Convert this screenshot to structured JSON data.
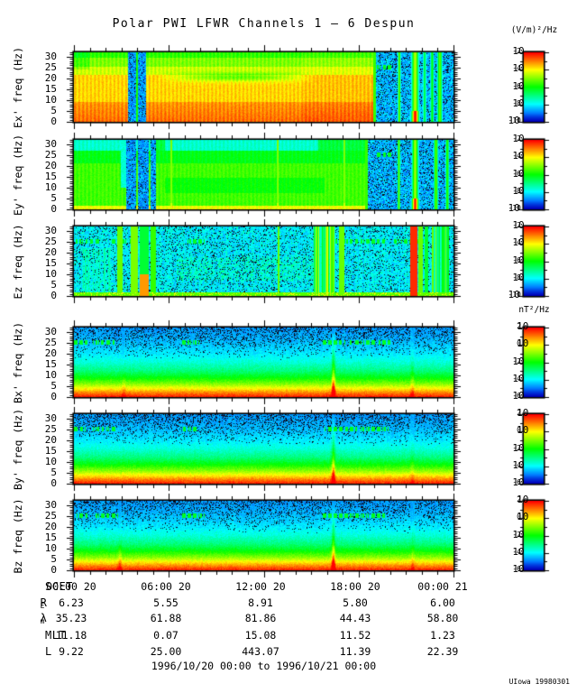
{
  "title": "Polar PWI LFWR Channels 1 — 6 Despun",
  "credit": "UIowa 19980301",
  "footer_range": "1996/10/20 00:00 to 1996/10/21 00:00",
  "freq_ticks": [
    "30",
    "25",
    "20",
    "15",
    "10",
    "5",
    "0"
  ],
  "time_ticks": [
    "00:00 20",
    "06:00 20",
    "12:00 20",
    "18:00 20",
    "00:00 21"
  ],
  "colorbar_groups": {
    "electric": {
      "unit": "(V/m)²/Hz",
      "exponents": [
        "-2",
        "-4",
        "-6",
        "-8",
        "-10"
      ]
    },
    "magnetic": {
      "unit": "nT²/Hz",
      "exponents": [
        "2",
        "0",
        "-2",
        "-4",
        "-6"
      ]
    }
  },
  "bottom_table": {
    "rows": [
      {
        "label": "SCET",
        "sub": "",
        "values": [
          "00:00 20",
          "06:00 20",
          "12:00 20",
          "18:00 20",
          "00:00 21"
        ]
      },
      {
        "label": "R",
        "sub": "E",
        "values": [
          "6.23",
          "5.55",
          "8.91",
          "5.80",
          "6.00"
        ]
      },
      {
        "label": "λ",
        "sub": "m",
        "values": [
          "35.23",
          "61.88",
          "81.86",
          "44.43",
          "58.80"
        ]
      },
      {
        "label": "MLT",
        "sub": "",
        "values": [
          "11.18",
          "0.07",
          "15.08",
          "11.52",
          "1.23"
        ]
      },
      {
        "label": "L",
        "sub": "",
        "values": [
          "9.22",
          "25.00",
          "443.07",
          "11.39",
          "22.39"
        ]
      }
    ]
  },
  "chart_data": {
    "type": "heatmap",
    "title": "Polar PWI LFWR Channels 1 — 6 Despun",
    "x_axis": {
      "label": "SCET",
      "start": "1996/10/20 00:00",
      "end": "1996/10/21 00:00",
      "span_hours": 24,
      "major_tick_hours": 6,
      "minor_tick_hours": 1,
      "tick_labels": [
        "00:00 20",
        "06:00 20",
        "12:00 20",
        "18:00 20",
        "00:00 21"
      ]
    },
    "y_axis": {
      "label": "freq (Hz)",
      "range": [
        0,
        32
      ],
      "major_ticks": [
        0,
        5,
        10,
        15,
        20,
        25,
        30
      ],
      "minor_tick_hz": 1
    },
    "colormap": "rainbow (blue=low ... red=high)",
    "panels": [
      {
        "id": "ex",
        "ylabel": "Ex' freq (Hz)",
        "colorbar_unit": "(V/m)²/Hz",
        "colorbar_ticks": [
          "10^-2",
          "10^-4",
          "10^-6",
          "10^-8",
          "10^-10"
        ],
        "summary": "Intense broadband emission (yellow/orange ~1e-4) below ~22 Hz with green band above 25 Hz until ~19:00; dropout bands ~03:20-04:30; weak noisy blue field after ~19:00 with narrow bursts.",
        "features": {
          "kind": "E1",
          "dark_bands": [
            [
              0.142,
              0.162
            ],
            [
              0.168,
              0.19
            ]
          ],
          "gap_line": [
            0.163,
            0.168
          ],
          "noisy_start": 0.79,
          "arc": {
            "f": 20.5,
            "t0": 0.22,
            "t1": 0.64
          },
          "dash_segments": [
            [
              0.8,
              0.836
            ]
          ],
          "stripes": [
            {
              "t": 0.858,
              "w": 0.004,
              "v": 0.62
            },
            {
              "t": 0.9,
              "w": 0.01,
              "v": 0.68,
              "hot": true
            },
            {
              "t": 0.925,
              "w": 0.005,
              "v": 0.45
            },
            {
              "t": 0.945,
              "w": 0.005,
              "v": 0.5
            },
            {
              "t": 0.965,
              "w": 0.007,
              "v": 0.6
            }
          ]
        }
      },
      {
        "id": "ey",
        "ylabel": "Ey' freq (Hz)",
        "colorbar_unit": "(V/m)²/Hz",
        "colorbar_ticks": [
          "10^-2",
          "10^-4",
          "10^-6",
          "10^-8",
          "10^-10"
        ],
        "summary": "Moderate green emission (~1e-7) with blue above ~27 Hz; same dropout bands; narrow yellow bursts near 06:10, 12:55, 17:05; weak noisy field after ~18:30.",
        "features": {
          "kind": "E2",
          "dark_bands": [
            [
              0.138,
              0.162
            ],
            [
              0.168,
              0.196
            ],
            [
              0.202,
              0.216
            ]
          ],
          "partial_dark": [
            0.122,
            0.138
          ],
          "noisy_start": 0.768,
          "yellow_lines": [
            0.256,
            0.537,
            0.713
          ],
          "dash_segments": [
            [
              0.8,
              0.838
            ]
          ],
          "stripes": [
            {
              "t": 0.857,
              "w": 0.004,
              "v": 0.6
            },
            {
              "t": 0.9,
              "w": 0.009,
              "v": 0.66,
              "hot": true
            },
            {
              "t": 0.955,
              "w": 0.006,
              "v": 0.6
            },
            {
              "t": 0.985,
              "w": 0.005,
              "v": 0.55
            }
          ]
        }
      },
      {
        "id": "ez",
        "ylabel": "Ez freq (Hz)",
        "colorbar_unit": "(V/m)²/Hz",
        "colorbar_ticks": [
          "10^-2",
          "10^-4",
          "10^-6",
          "10^-8",
          "10^-10"
        ],
        "summary": "Weak blue background with interference line near 25 Hz; green burst clusters ~02:45-05:10 and ~15:10-16:30; intense red burst near 21:20; green baseline at lowest frequencies.",
        "features": {
          "kind": "E3",
          "dash_segments": [
            [
              0.003,
              0.07
            ],
            [
              0.095,
              0.17
            ],
            [
              0.295,
              0.345
            ],
            [
              0.655,
              0.82
            ],
            [
              0.845,
              0.935
            ]
          ],
          "faint_cols": [
            0.02,
            0.1
          ],
          "stripes": [
            {
              "t0": 0.113,
              "t1": 0.128,
              "v": 0.6
            },
            {
              "t0": 0.15,
              "t1": 0.168,
              "v": 0.62
            },
            {
              "t0": 0.172,
              "t1": 0.196,
              "v": 0.85,
              "fmax": 10
            },
            {
              "t0": 0.202,
              "t1": 0.215,
              "v": 0.55
            },
            {
              "t0": 0.538,
              "t1": 0.542,
              "v": 0.6
            },
            {
              "t0": 0.632,
              "t1": 0.69,
              "v": 0.62,
              "noisy": true
            },
            {
              "t0": 0.7,
              "t1": 0.712,
              "v": 0.6
            },
            {
              "t0": 0.886,
              "t1": 0.905,
              "v": 0.96
            },
            {
              "t0": 0.908,
              "t1": 0.92,
              "v": 0.6
            },
            {
              "t0": 0.925,
              "t1": 0.935,
              "v": 0.45
            },
            {
              "t0": 0.945,
              "t1": 0.99,
              "v": 0.55,
              "noisy": true
            }
          ]
        }
      },
      {
        "id": "bx",
        "ylabel": "Bx' freq (Hz)",
        "colorbar_unit": "nT²/Hz",
        "colorbar_ticks": [
          "10^2",
          "10^0",
          "10^-2",
          "10^-4",
          "10^-6"
        ],
        "summary": "Falling power-law spectrum: red/orange (~1e2) below ~3 Hz grading to dark blue above ~20 Hz; dashed interference near 25 Hz; vertical burst near 16:25.",
        "features": {
          "kind": "B",
          "dash_segments": [
            [
              0.0,
              0.035
            ],
            [
              0.05,
              0.115
            ],
            [
              0.285,
              0.33
            ],
            [
              0.655,
              0.835
            ]
          ],
          "spikes": [
            {
              "t": 0.684,
              "amp": 0.34,
              "fdiv": 30
            },
            {
              "t": 0.893,
              "amp": 0.1,
              "fdiv": 24
            },
            {
              "t": 0.13,
              "amp": 0.08,
              "fdiv": 14
            }
          ]
        }
      },
      {
        "id": "by",
        "ylabel": "By' freq (Hz)",
        "colorbar_unit": "nT²/Hz",
        "colorbar_ticks": [
          "10^2",
          "10^0",
          "10^-2",
          "10^-4",
          "10^-6"
        ],
        "summary": "Same falling spectrum as Bx' with dashed 25 Hz interference and burst near 16:25.",
        "features": {
          "kind": "B",
          "dash_segments": [
            [
              0.0,
              0.03
            ],
            [
              0.05,
              0.11
            ],
            [
              0.285,
              0.325
            ],
            [
              0.66,
              0.83
            ]
          ],
          "spikes": [
            {
              "t": 0.684,
              "amp": 0.3,
              "fdiv": 30
            },
            {
              "t": 0.893,
              "amp": 0.08,
              "fdiv": 24
            }
          ]
        }
      },
      {
        "id": "bz",
        "ylabel": "Bz freq (Hz)",
        "colorbar_unit": "nT²/Hz",
        "colorbar_ticks": [
          "10^2",
          "10^0",
          "10^-2",
          "10^-4",
          "10^-6"
        ],
        "summary": "Same falling spectrum; faint burst near 02:50 and strong narrow burst near 16:25.",
        "features": {
          "kind": "B",
          "dash_segments": [
            [
              0.005,
              0.04
            ],
            [
              0.05,
              0.115
            ],
            [
              0.285,
              0.345
            ],
            [
              0.655,
              0.825
            ]
          ],
          "spikes": [
            {
              "t": 0.684,
              "amp": 0.32,
              "fdiv": 30
            },
            {
              "t": 0.893,
              "amp": 0.09,
              "fdiv": 24
            },
            {
              "t": 0.12,
              "amp": 0.13,
              "fdiv": 16
            }
          ]
        }
      }
    ],
    "ephemeris_rows": [
      {
        "name": "RE",
        "values": [
          6.23,
          5.55,
          8.91,
          5.8,
          6.0
        ]
      },
      {
        "name": "λm",
        "values": [
          35.23,
          61.88,
          81.86,
          44.43,
          58.8
        ]
      },
      {
        "name": "MLT",
        "values": [
          11.18,
          0.07,
          15.08,
          11.52,
          1.23
        ]
      },
      {
        "name": "L",
        "values": [
          9.22,
          25.0,
          443.07,
          11.39,
          22.39
        ]
      }
    ]
  }
}
